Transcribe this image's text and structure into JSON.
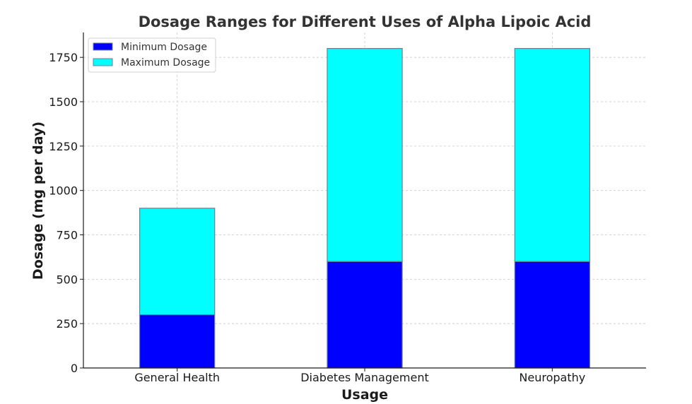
{
  "chart_data": {
    "type": "bar",
    "stacked": true,
    "title": "Dosage Ranges for Different Uses of Alpha Lipoic Acid",
    "xlabel": "Usage",
    "ylabel": "Dosage (mg per day)",
    "categories": [
      "General Health",
      "Diabetes Management",
      "Neuropathy"
    ],
    "series": [
      {
        "name": "Minimum Dosage",
        "values": [
          300,
          600,
          600
        ],
        "color": "#0000ff"
      },
      {
        "name": "Maximum Dosage",
        "values": [
          600,
          1200,
          1200
        ],
        "color": "#00ffff"
      }
    ],
    "yticks": [
      0,
      250,
      500,
      750,
      1000,
      1250,
      1500,
      1750
    ],
    "ylim": [
      0,
      1890
    ],
    "grid": true,
    "legend_position": "top-left"
  }
}
